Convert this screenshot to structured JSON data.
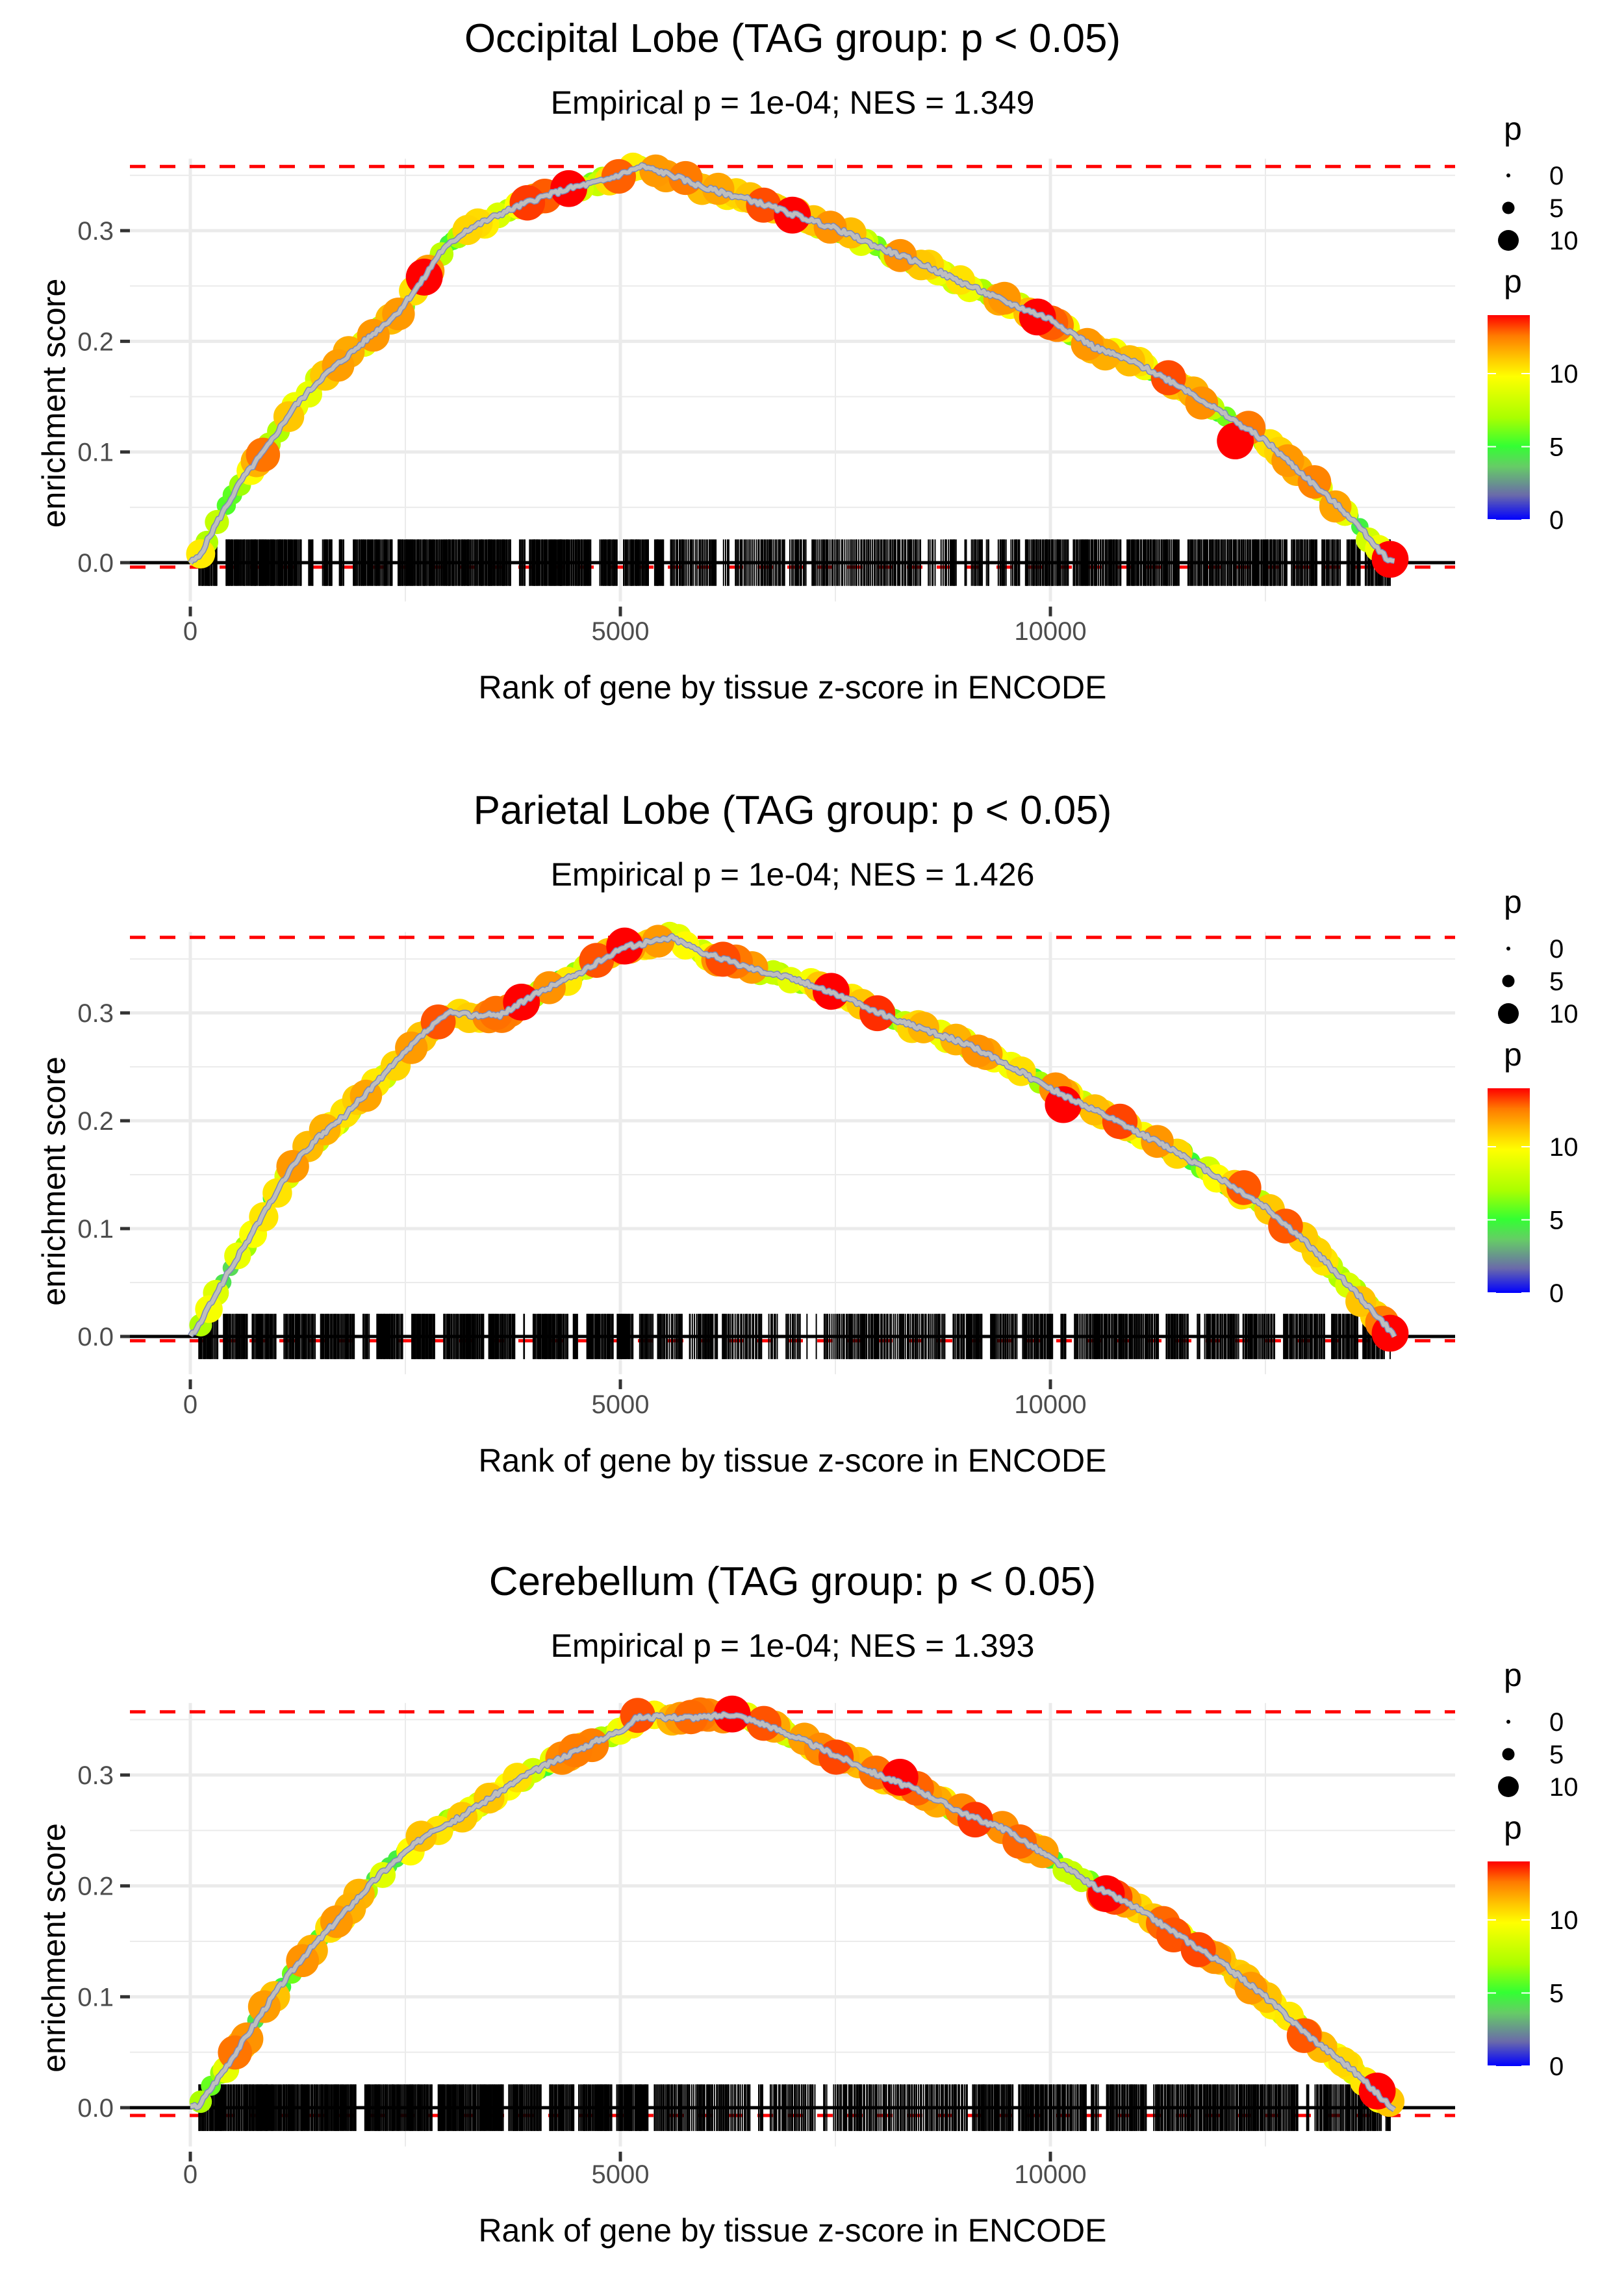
{
  "colors": {
    "gridline": "#ebebeb",
    "threshold_line": "#ff0000",
    "zero_line": "#000000",
    "rug": "#000000",
    "curve": "#bebebe",
    "tick_text": "#4d4d4d",
    "colorbar_stops": [
      "#0000ff",
      "#6a6aaa",
      "#7fbf6f",
      "#33ff33",
      "#aaff00",
      "#ffff00",
      "#ffaa00",
      "#ff6600",
      "#ff0000"
    ]
  },
  "legend": {
    "size_title": "p",
    "size_entries": [
      {
        "label": "0",
        "value": 0
      },
      {
        "label": "5",
        "value": 5
      },
      {
        "label": "10",
        "value": 10
      }
    ],
    "color_title": "p",
    "color_ticks": [
      {
        "label": "0",
        "value": 0
      },
      {
        "label": "5",
        "value": 5
      },
      {
        "label": "10",
        "value": 10
      }
    ],
    "color_range": [
      0,
      14
    ]
  },
  "chart_data": [
    {
      "type": "line",
      "title": "Occipital Lobe (TAG group: p < 0.05)",
      "subtitle": "Empirical p = 1e-04; NES = 1.349",
      "xlabel": "Rank of gene by tissue z-score in ENCODE",
      "ylabel": "enrichment score",
      "xlim": [
        -700,
        14700
      ],
      "ylim": [
        -0.035,
        0.365
      ],
      "x_ticks": [
        {
          "label": "0",
          "value": 0
        },
        {
          "label": "5000",
          "value": 5000
        },
        {
          "label": "10000",
          "value": 10000
        }
      ],
      "y_ticks": [
        {
          "label": "0.0",
          "value": 0.0
        },
        {
          "label": "0.1",
          "value": 0.1
        },
        {
          "label": "0.2",
          "value": 0.2
        },
        {
          "label": "0.3",
          "value": 0.3
        }
      ],
      "max_es_line": 0.358,
      "min_es_line": -0.004,
      "grid": true,
      "legend_position": "right",
      "rug_range": [
        100,
        13950
      ],
      "series": [
        {
          "name": "running enrichment score",
          "x": [
            0,
            100,
            300,
            600,
            900,
            1200,
            1500,
            1800,
            2100,
            2400,
            2700,
            2900,
            3200,
            3600,
            4000,
            4400,
            4800,
            5250,
            5600,
            6000,
            6500,
            7000,
            7500,
            8000,
            8500,
            9000,
            9500,
            10000,
            10500,
            11000,
            11500,
            12000,
            12500,
            13000,
            13500,
            13900,
            14000
          ],
          "y": [
            0.0,
            0.005,
            0.035,
            0.075,
            0.105,
            0.14,
            0.165,
            0.185,
            0.205,
            0.225,
            0.255,
            0.28,
            0.3,
            0.315,
            0.328,
            0.338,
            0.345,
            0.358,
            0.35,
            0.338,
            0.328,
            0.315,
            0.302,
            0.285,
            0.27,
            0.252,
            0.235,
            0.22,
            0.195,
            0.18,
            0.16,
            0.135,
            0.11,
            0.075,
            0.04,
            0.005,
            0.0
          ]
        }
      ],
      "highlight_points": [
        {
          "x": 2720,
          "y": 0.258,
          "p": 14
        },
        {
          "x": 4400,
          "y": 0.338,
          "p": 14
        },
        {
          "x": 7000,
          "y": 0.314,
          "p": 14
        },
        {
          "x": 9850,
          "y": 0.222,
          "p": 14
        },
        {
          "x": 12150,
          "y": 0.11,
          "p": 14
        },
        {
          "x": 13950,
          "y": 0.003,
          "p": 14
        }
      ]
    },
    {
      "type": "line",
      "title": "Parietal Lobe (TAG group: p < 0.05)",
      "subtitle": "Empirical p = 1e-04; NES = 1.426",
      "xlabel": "Rank of gene by tissue z-score in ENCODE",
      "ylabel": "enrichment score",
      "xlim": [
        -700,
        14700
      ],
      "ylim": [
        -0.035,
        0.375
      ],
      "x_ticks": [
        {
          "label": "0",
          "value": 0
        },
        {
          "label": "5000",
          "value": 5000
        },
        {
          "label": "10000",
          "value": 10000
        }
      ],
      "y_ticks": [
        {
          "label": "0.0",
          "value": 0.0
        },
        {
          "label": "0.1",
          "value": 0.1
        },
        {
          "label": "0.2",
          "value": 0.2
        },
        {
          "label": "0.3",
          "value": 0.3
        }
      ],
      "max_es_line": 0.37,
      "min_es_line": -0.004,
      "grid": true,
      "legend_position": "right",
      "rug_range": [
        100,
        13950
      ],
      "series": [
        {
          "name": "running enrichment score",
          "x": [
            0,
            100,
            300,
            600,
            900,
            1200,
            1500,
            1800,
            2100,
            2400,
            2700,
            3000,
            3300,
            3600,
            3900,
            4200,
            4600,
            5000,
            5300,
            5600,
            6000,
            6500,
            7000,
            7500,
            8000,
            8500,
            9000,
            9500,
            10000,
            10500,
            11000,
            11500,
            12000,
            12500,
            13000,
            13500,
            13900,
            14000
          ],
          "y": [
            0.0,
            0.01,
            0.04,
            0.08,
            0.12,
            0.16,
            0.185,
            0.205,
            0.23,
            0.255,
            0.28,
            0.3,
            0.298,
            0.298,
            0.312,
            0.325,
            0.34,
            0.36,
            0.365,
            0.37,
            0.355,
            0.342,
            0.332,
            0.318,
            0.3,
            0.285,
            0.272,
            0.252,
            0.23,
            0.21,
            0.19,
            0.17,
            0.145,
            0.12,
            0.085,
            0.045,
            0.01,
            0.0
          ]
        }
      ],
      "highlight_points": [
        {
          "x": 3850,
          "y": 0.31,
          "p": 14
        },
        {
          "x": 5050,
          "y": 0.362,
          "p": 14
        },
        {
          "x": 7450,
          "y": 0.32,
          "p": 14
        },
        {
          "x": 10150,
          "y": 0.215,
          "p": 14
        },
        {
          "x": 12250,
          "y": 0.138,
          "p": 13
        },
        {
          "x": 13950,
          "y": 0.003,
          "p": 14
        }
      ]
    },
    {
      "type": "line",
      "title": "Cerebellum (TAG group: p < 0.05)",
      "subtitle": "Empirical p = 1e-04; NES = 1.393",
      "xlabel": "Rank of gene by tissue z-score in ENCODE",
      "ylabel": "enrichment score",
      "xlim": [
        -700,
        14700
      ],
      "ylim": [
        -0.035,
        0.365
      ],
      "x_ticks": [
        {
          "label": "0",
          "value": 0
        },
        {
          "label": "5000",
          "value": 5000
        },
        {
          "label": "10000",
          "value": 10000
        }
      ],
      "y_ticks": [
        {
          "label": "0.0",
          "value": 0.0
        },
        {
          "label": "0.1",
          "value": 0.1
        },
        {
          "label": "0.2",
          "value": 0.2
        },
        {
          "label": "0.3",
          "value": 0.3
        }
      ],
      "max_es_line": 0.357,
      "min_es_line": -0.007,
      "grid": true,
      "legend_position": "right",
      "rug_range": [
        100,
        13950
      ],
      "series": [
        {
          "name": "running enrichment score",
          "x": [
            0,
            100,
            400,
            700,
            1000,
            1300,
            1600,
            1900,
            2200,
            2500,
            2800,
            3100,
            3500,
            3900,
            4300,
            4700,
            5000,
            5200,
            5600,
            6000,
            6300,
            6700,
            7100,
            7500,
            8000,
            8500,
            9000,
            9500,
            10000,
            10500,
            11000,
            11500,
            12000,
            12500,
            13000,
            13500,
            13900,
            14000
          ],
          "y": [
            0.0,
            0.002,
            0.035,
            0.07,
            0.105,
            0.135,
            0.16,
            0.185,
            0.21,
            0.23,
            0.25,
            0.26,
            0.28,
            0.3,
            0.315,
            0.33,
            0.34,
            0.352,
            0.352,
            0.352,
            0.355,
            0.345,
            0.332,
            0.318,
            0.3,
            0.285,
            0.265,
            0.25,
            0.225,
            0.2,
            0.18,
            0.155,
            0.13,
            0.1,
            0.065,
            0.035,
            0.005,
            0.0
          ]
        }
      ],
      "highlight_points": [
        {
          "x": 6300,
          "y": 0.355,
          "p": 14
        },
        {
          "x": 8250,
          "y": 0.298,
          "p": 14
        },
        {
          "x": 10650,
          "y": 0.193,
          "p": 14
        },
        {
          "x": 12950,
          "y": 0.065,
          "p": 13
        },
        {
          "x": 13800,
          "y": 0.015,
          "p": 14
        }
      ]
    }
  ]
}
